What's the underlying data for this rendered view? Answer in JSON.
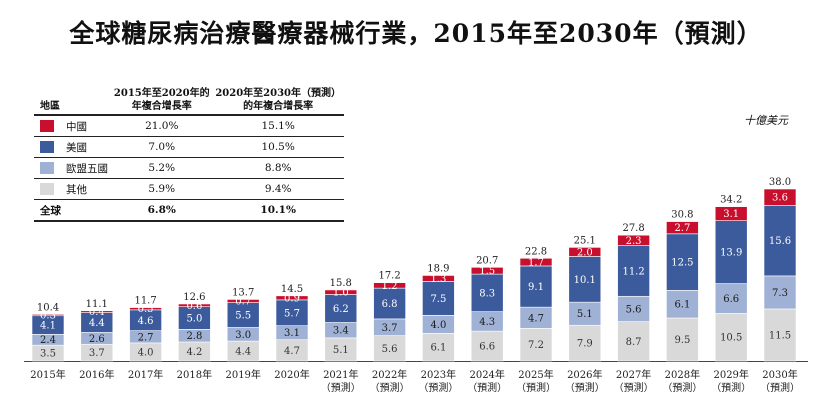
{
  "title": "全球糖尿病治療醫療器械行業，2015年至2030年（預測）",
  "unit": "十億美元",
  "legend_table": {
    "region_header": "地區",
    "col1_header_line1": "2015年至2020年的",
    "col1_header_line2": "年複合增長率",
    "col2_header_line1": "2020年至2030年（預測）",
    "col2_header_line2": "的年複合增長率",
    "rows": [
      {
        "name": "中國",
        "color": "#c8102e",
        "cagr1": "21.0%",
        "cagr2": "15.1%"
      },
      {
        "name": "美國",
        "color": "#3c5b9c",
        "cagr1": "7.0%",
        "cagr2": "10.5%"
      },
      {
        "name": "歐盟五國",
        "color": "#9fb1d4",
        "cagr1": "5.2%",
        "cagr2": "8.8%"
      },
      {
        "name": "其他",
        "color": "#d9d9d9",
        "cagr1": "5.9%",
        "cagr2": "9.4%"
      }
    ],
    "total": {
      "name": "全球",
      "cagr1": "6.8%",
      "cagr2": "10.1%"
    }
  },
  "chart_data": {
    "type": "bar",
    "stacked": true,
    "title": "全球糖尿病治療醫療器械行業，2015年至2030年（預測）",
    "unit": "十億美元",
    "categories": [
      [
        "2015年"
      ],
      [
        "2016年"
      ],
      [
        "2017年"
      ],
      [
        "2018年"
      ],
      [
        "2019年"
      ],
      [
        "2020年"
      ],
      [
        "2021年",
        "（預測）"
      ],
      [
        "2022年",
        "（預測）"
      ],
      [
        "2023年",
        "（預測）"
      ],
      [
        "2024年",
        "（預測）"
      ],
      [
        "2025年",
        "（預測）"
      ],
      [
        "2026年",
        "（預測）"
      ],
      [
        "2027年",
        "（預測）"
      ],
      [
        "2028年",
        "（預測）"
      ],
      [
        "2029年",
        "（預測）"
      ],
      [
        "2030年",
        "（預測）"
      ]
    ],
    "series": [
      {
        "name": "其他",
        "color": "#d9d9d9",
        "label_color": "#333333",
        "values": [
          3.5,
          3.7,
          4.0,
          4.2,
          4.4,
          4.7,
          5.1,
          5.6,
          6.1,
          6.6,
          7.2,
          7.9,
          8.7,
          9.5,
          10.5,
          11.5
        ]
      },
      {
        "name": "歐盟五國",
        "color": "#9fb1d4",
        "label_color": "#1a1a1a",
        "values": [
          2.4,
          2.6,
          2.7,
          2.8,
          3.0,
          3.1,
          3.4,
          3.7,
          4.0,
          4.3,
          4.7,
          5.1,
          5.6,
          6.1,
          6.6,
          7.3
        ]
      },
      {
        "name": "美國",
        "color": "#3c5b9c",
        "label_color": "#ffffff",
        "values": [
          4.1,
          4.4,
          4.6,
          5.0,
          5.5,
          5.7,
          6.2,
          6.8,
          7.5,
          8.3,
          9.1,
          10.1,
          11.2,
          12.5,
          13.9,
          15.6
        ]
      },
      {
        "name": "中國",
        "color": "#c8102e",
        "label_color": "#ffffff",
        "values": [
          0.3,
          0.4,
          0.5,
          0.6,
          0.7,
          0.9,
          1.0,
          1.2,
          1.3,
          1.5,
          1.7,
          2.0,
          2.3,
          2.7,
          3.1,
          3.6
        ]
      }
    ],
    "totals": [
      10.4,
      11.1,
      11.7,
      12.6,
      13.7,
      14.5,
      15.8,
      17.2,
      18.9,
      20.7,
      22.8,
      25.1,
      27.8,
      30.8,
      34.2,
      38.0
    ],
    "ylim": [
      0,
      38.0
    ],
    "grid": false,
    "legend_placement": "top-left"
  }
}
